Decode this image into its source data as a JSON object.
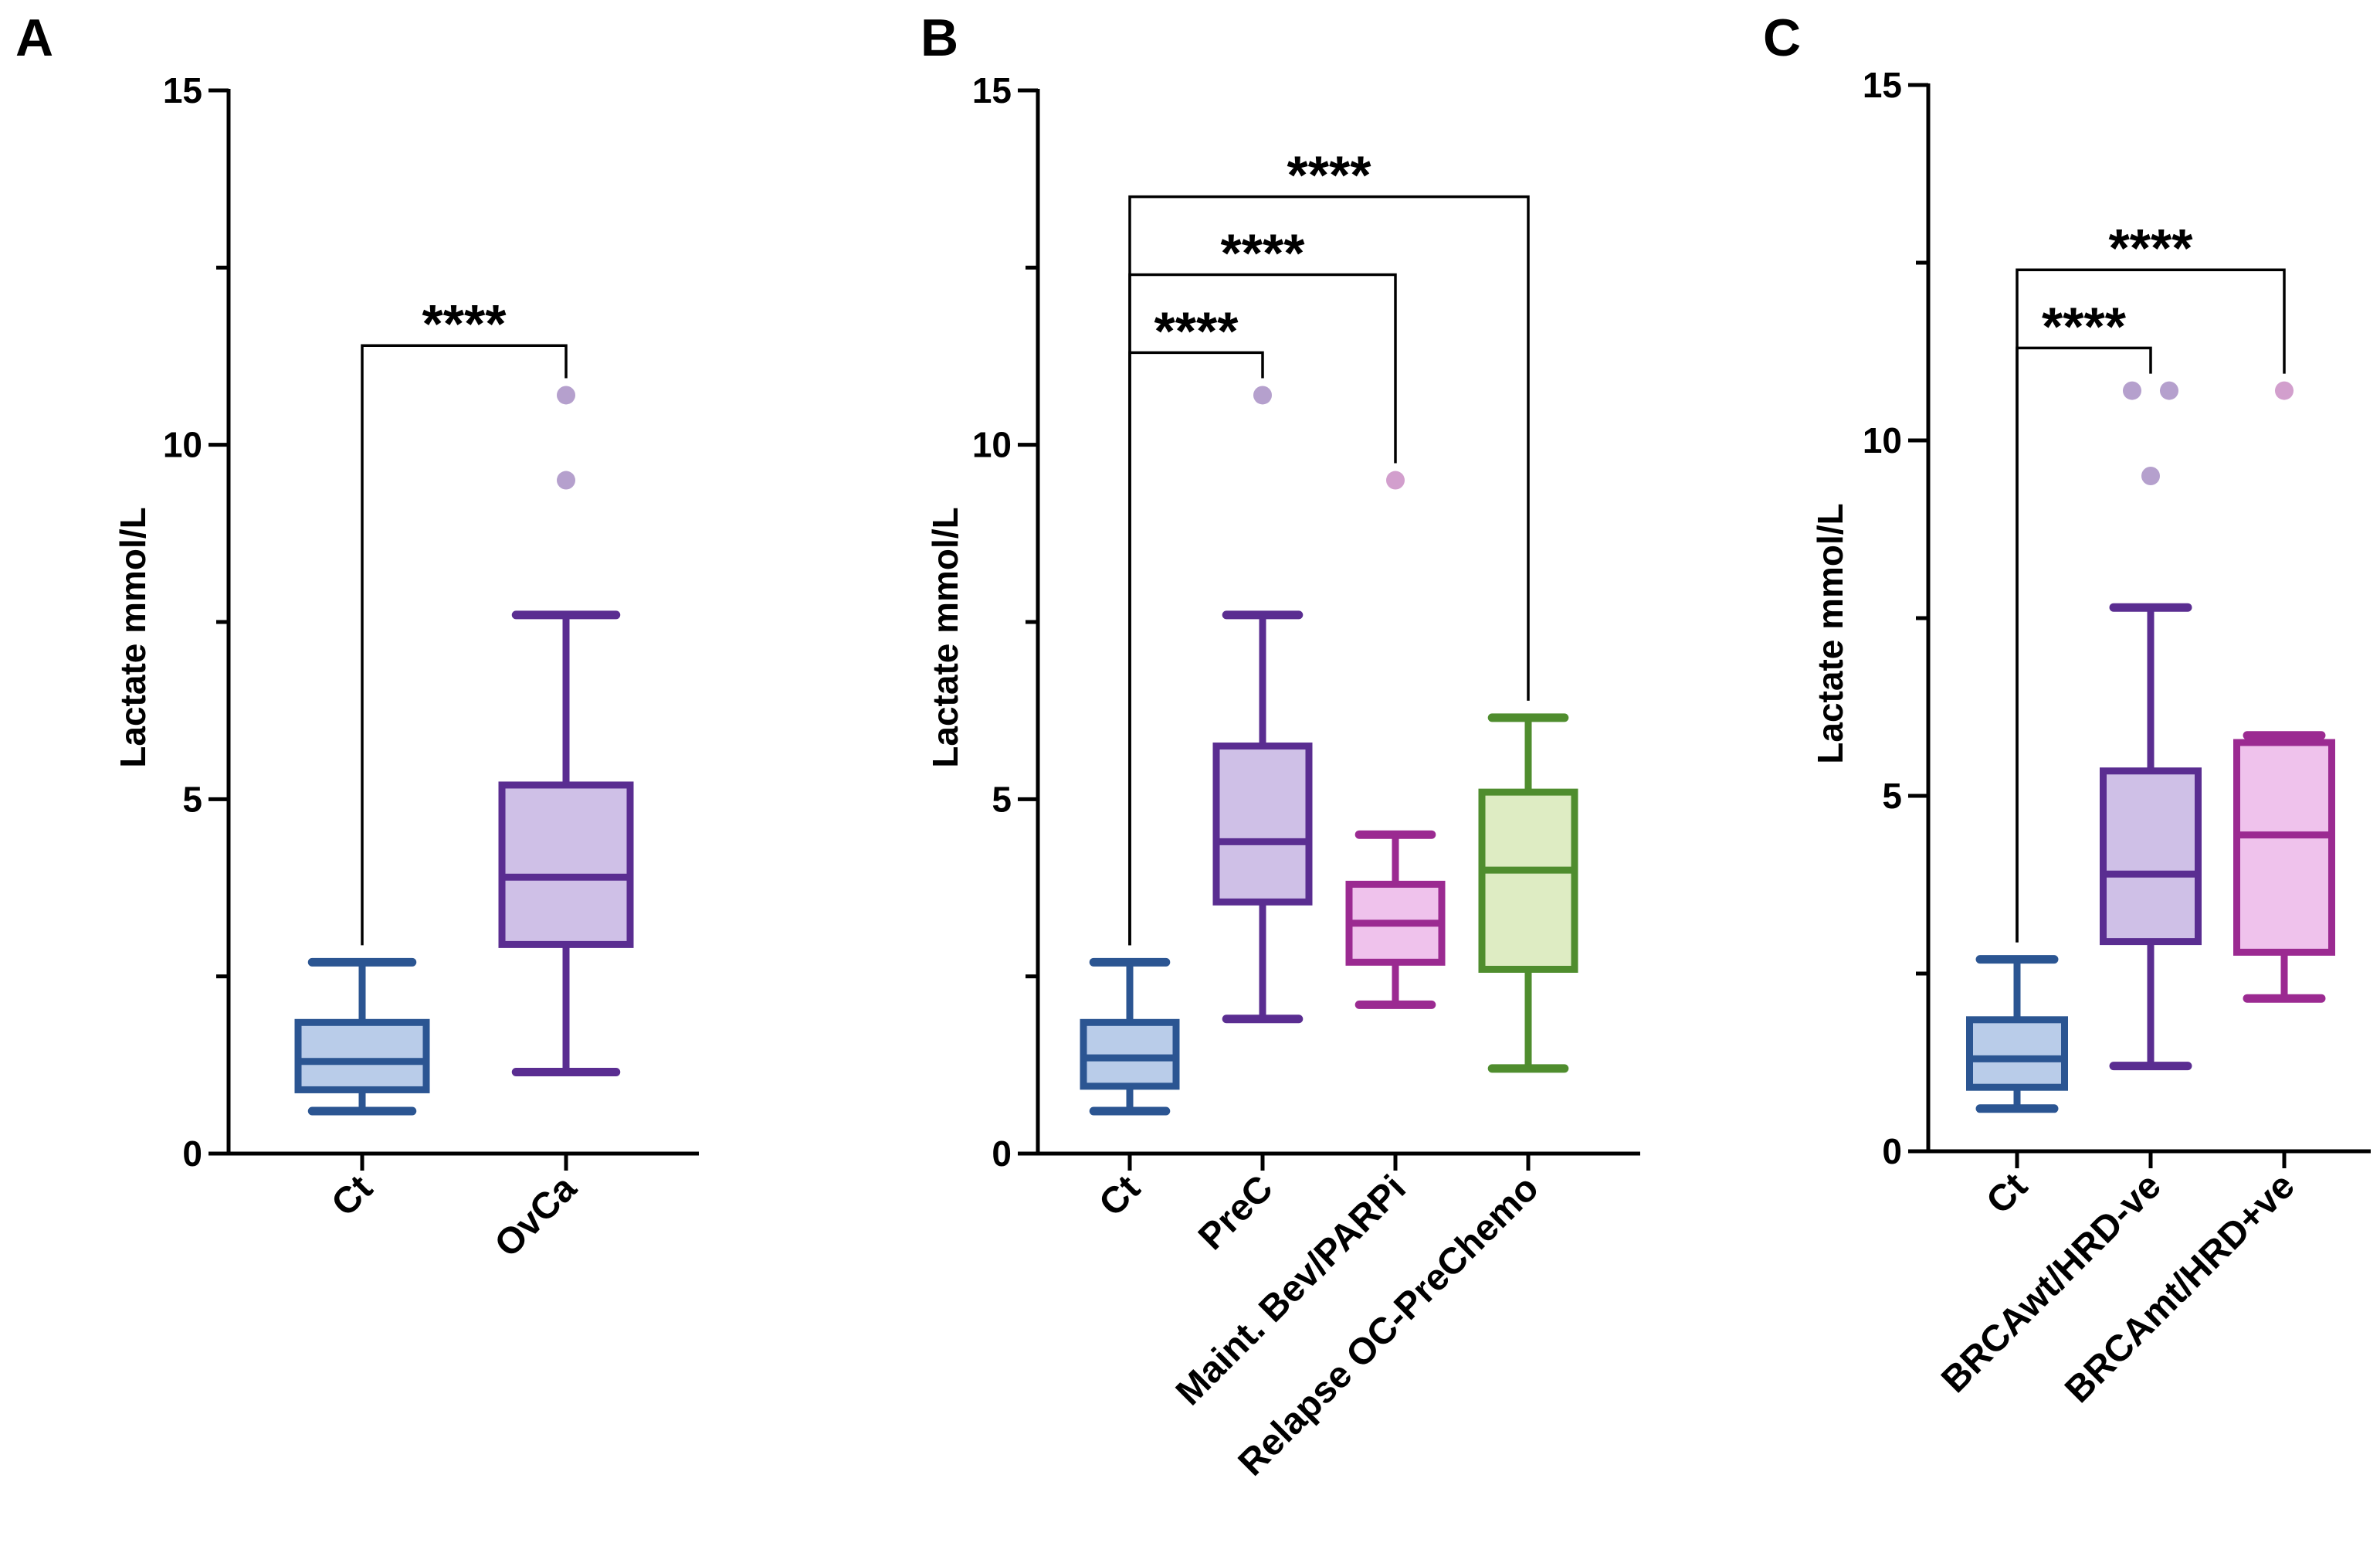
{
  "chart_data": [
    {
      "type": "box",
      "panel": "A",
      "ylabel": "Lactate mmol/L",
      "ylim": [
        0,
        15
      ],
      "yticks": [
        "0",
        "5",
        "10",
        "15"
      ],
      "groups": [
        {
          "name": "Ct",
          "min": 0.6,
          "q1": 0.9,
          "median": 1.3,
          "q3": 1.85,
          "max": 2.7,
          "outliers": [],
          "stroke": "#2b5592",
          "fill": "#b9cce9"
        },
        {
          "name": "OvCa",
          "min": 1.15,
          "q1": 2.95,
          "median": 3.9,
          "q3": 5.2,
          "max": 7.6,
          "outliers": [
            9.5,
            10.7
          ],
          "stroke": "#5a2d91",
          "fill": "#cfc0e7"
        }
      ],
      "comparisons": [
        {
          "label": "****",
          "from": 0,
          "to": 1,
          "level": 11.4
        }
      ]
    },
    {
      "type": "box",
      "panel": "B",
      "ylabel": "Lactate mmol/L",
      "ylim": [
        0,
        15
      ],
      "yticks": [
        "0",
        "5",
        "10",
        "15"
      ],
      "groups": [
        {
          "name": "Ct",
          "min": 0.6,
          "q1": 0.95,
          "median": 1.35,
          "q3": 1.85,
          "max": 2.7,
          "outliers": [],
          "stroke": "#2b5592",
          "fill": "#b9cce9"
        },
        {
          "name": "PreC",
          "min": 1.9,
          "q1": 3.55,
          "median": 4.4,
          "q3": 5.75,
          "max": 7.6,
          "outliers": [
            10.7
          ],
          "stroke": "#5a2d91",
          "fill": "#cfc0e7"
        },
        {
          "name": "Maint. Bev/PARPi",
          "min": 2.1,
          "q1": 2.7,
          "median": 3.25,
          "q3": 3.8,
          "max": 4.5,
          "outliers": [
            9.5
          ],
          "stroke": "#9b2a91",
          "fill": "#efc2ec"
        },
        {
          "name": "Relapse OC-PreChemo",
          "min": 1.2,
          "q1": 2.6,
          "median": 4.0,
          "q3": 5.1,
          "max": 6.15,
          "outliers": [],
          "stroke": "#4f8d2e",
          "fill": "#deecc3"
        }
      ],
      "comparisons": [
        {
          "label": "****",
          "from": 0,
          "to": 1,
          "level": 11.3
        },
        {
          "label": "****",
          "from": 0,
          "to": 2,
          "level": 12.4
        },
        {
          "label": "****",
          "from": 0,
          "to": 3,
          "level": 13.5
        }
      ]
    },
    {
      "type": "box",
      "panel": "C",
      "ylabel": "Lactate mmol/L",
      "ylim": [
        0,
        15
      ],
      "yticks": [
        "0",
        "5",
        "10",
        "15"
      ],
      "groups": [
        {
          "name": "Ct",
          "min": 0.6,
          "q1": 0.9,
          "median": 1.3,
          "q3": 1.85,
          "max": 2.7,
          "outliers": [],
          "stroke": "#2b5592",
          "fill": "#b9cce9"
        },
        {
          "name": "BRCAwt/HRD-ve",
          "min": 1.2,
          "q1": 2.95,
          "median": 3.9,
          "q3": 5.35,
          "max": 7.65,
          "outliers": [
            9.5,
            10.7,
            10.7
          ],
          "stroke": "#5a2d91",
          "fill": "#cfc0e7"
        },
        {
          "name": "BRCAmt/HRD+ve",
          "min": 2.15,
          "q1": 2.8,
          "median": 4.45,
          "q3": 5.75,
          "max": 5.85,
          "outliers": [
            10.7
          ],
          "stroke": "#9b2a91",
          "fill": "#efc2ec"
        }
      ],
      "comparisons": [
        {
          "label": "****",
          "from": 0,
          "to": 1,
          "level": 11.3
        },
        {
          "label": "****",
          "from": 0,
          "to": 2,
          "level": 12.4
        }
      ]
    }
  ]
}
